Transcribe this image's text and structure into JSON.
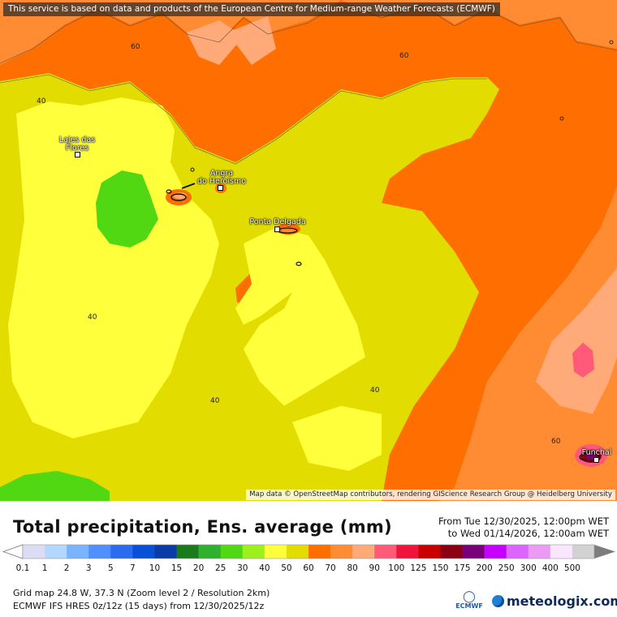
{
  "banner": "This service is based on data and products of the European Centre for Medium-range Weather Forecasts (ECMWF)",
  "attribution": "Map data © OpenStreetMap contributors, rendering GIScience Research Group @ Heidelberg University",
  "cities": [
    {
      "name": "Lajes das\nFlores"
    },
    {
      "name": "Angra\ndo Heroísmo"
    },
    {
      "name": "Ponta Delgada"
    },
    {
      "name": "Funchal"
    }
  ],
  "contour_labels": [
    "60",
    "60",
    "40",
    "40",
    "40",
    "40",
    "60"
  ],
  "title": "Total precipitation, Ens. average (mm)",
  "period": {
    "from": "From Tue 12/30/2025, 12:00pm WET",
    "to": "to Wed 01/14/2026, 12:00am WET"
  },
  "legend": {
    "values": [
      "0.1",
      "1",
      "2",
      "3",
      "5",
      "7",
      "10",
      "15",
      "20",
      "25",
      "30",
      "40",
      "50",
      "60",
      "70",
      "80",
      "90",
      "100",
      "125",
      "150",
      "175",
      "200",
      "250",
      "300",
      "400",
      "500"
    ],
    "colors": [
      "#dcdcf5",
      "#b4d7ff",
      "#78b4ff",
      "#4f8fff",
      "#2a6cf0",
      "#0a4fd8",
      "#0a3ca8",
      "#1b7a1b",
      "#2fb02f",
      "#52d812",
      "#9ef01c",
      "#ffff3c",
      "#e2dc00",
      "#ff6e00",
      "#ff8c32",
      "#ffaa78",
      "#ff5a78",
      "#f0143c",
      "#c80000",
      "#8c0014",
      "#780078",
      "#c800ff",
      "#dc64ff",
      "#eb9bf5",
      "#fae6ff",
      "#d2d2d2"
    ]
  },
  "info": {
    "line1": "Grid map 24.8 W, 37.3 N (Zoom level 2 / Resolution 2km)",
    "line2": "ECMWF IFS HRES 0z/12z (15 days) from  12/30/2025/12z"
  },
  "logos": {
    "ecmwf": "ECMWF",
    "meteologix": "meteologix.com"
  }
}
